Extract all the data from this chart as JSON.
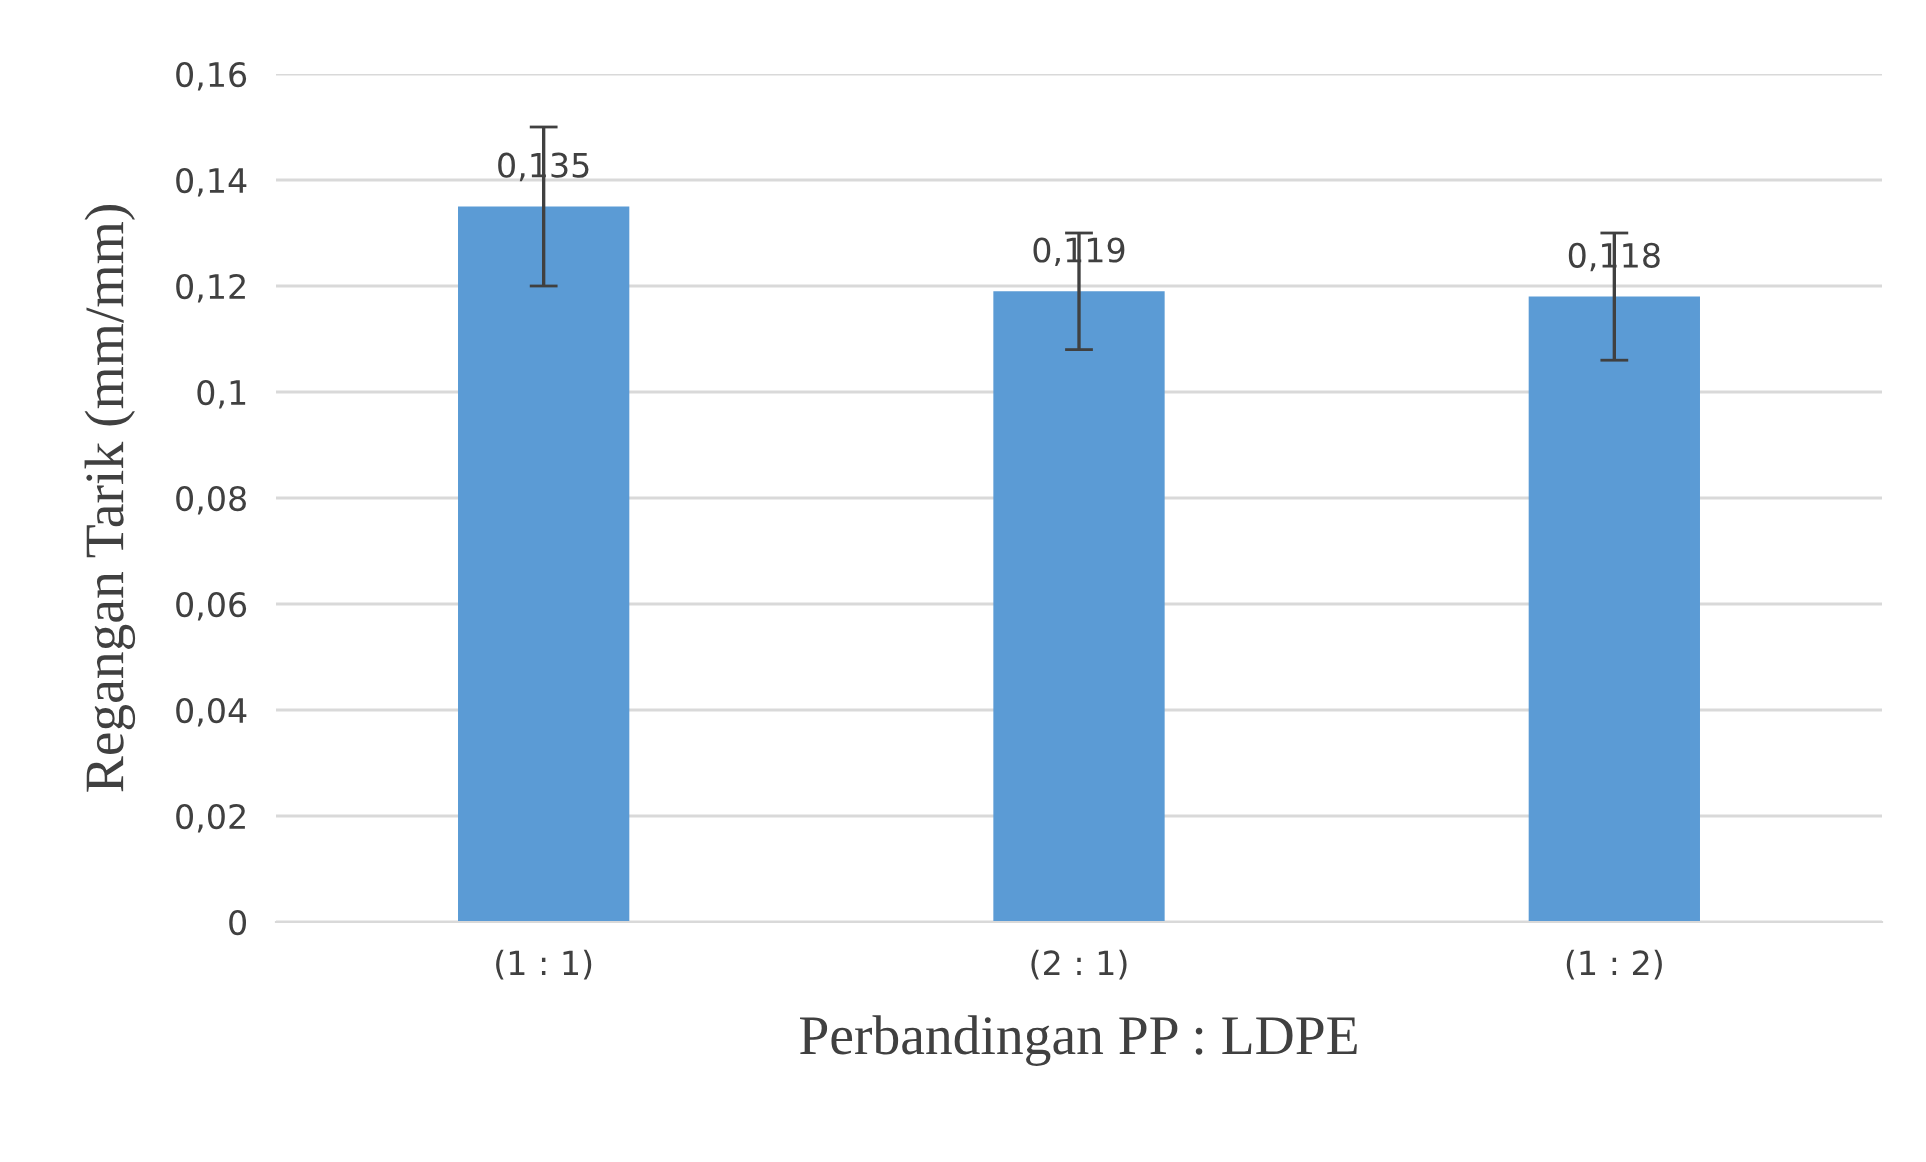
{
  "chart_data": {
    "type": "bar",
    "xlabel": "Perbandingan PP : LDPE",
    "ylabel": "Regangan Tarik (mm/mm)",
    "categories": [
      "(1 : 1)",
      "(2 : 1)",
      "(1 : 2)"
    ],
    "values": [
      0.135,
      0.119,
      0.118
    ],
    "errors": [
      [
        0.12,
        0.15
      ],
      [
        0.108,
        0.13
      ],
      [
        0.106,
        0.13
      ]
    ],
    "value_labels": [
      "0,135",
      "0,119",
      "0,118"
    ],
    "color": "#5b9bd5",
    "ylim": [
      0,
      0.16
    ],
    "yticks": [
      0,
      {
        "value": 0.02,
        "label": "0,02"
      },
      {
        "value": 0.04,
        "label": "0,04"
      },
      {
        "value": 0.06,
        "label": "0,06"
      },
      {
        "value": 0.08,
        "label": "0,08"
      },
      {
        "value": 0.1,
        "label": "0,1"
      },
      {
        "value": 0.12,
        "label": "0,12"
      },
      {
        "value": 0.14,
        "label": "0,14"
      },
      {
        "value": 0.16,
        "label": "0,16"
      }
    ],
    "grid": "y"
  }
}
